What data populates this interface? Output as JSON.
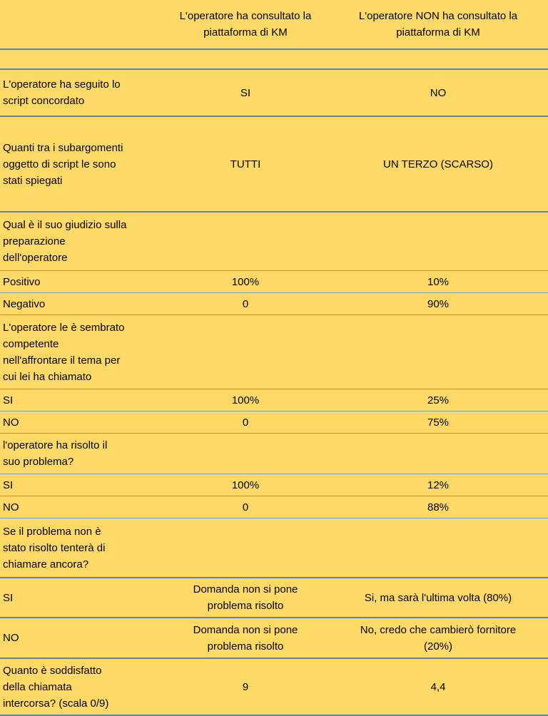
{
  "header": {
    "col1": "L'operatore ha consultato la\npiattaforma di KM",
    "col2": "L'operatore NON ha consultato la\npiattaforma di KM"
  },
  "rows": [
    {
      "label": "",
      "v1": "",
      "v2": ""
    },
    {
      "label": "L'operatore ha seguito lo\nscript concordato",
      "v1": "SI",
      "v2": "NO"
    },
    {
      "label": "Quanti tra i subargomenti\noggetto di script le sono\nstati spiegati",
      "v1": "TUTTI",
      "v2": "UN TERZO (SCARSO)"
    },
    {
      "label": "Qual è il suo giudizio sulla\npreparazione\ndell'operatore",
      "v1": "",
      "v2": ""
    },
    {
      "label": "Positivo",
      "v1": "100%",
      "v2": "10%"
    },
    {
      "label": "Negativo",
      "v1": "0",
      "v2": "90%"
    },
    {
      "label": "L'operatore le è sembrato\ncompetente\nnell'affrontare il tema per\ncui lei ha chiamato",
      "v1": "",
      "v2": ""
    },
    {
      "label": "SI",
      "v1": "100%",
      "v2": "25%"
    },
    {
      "label": "NO",
      "v1": "0",
      "v2": "75%"
    },
    {
      "label": "l'operatore ha risolto il\nsuo problema?",
      "v1": "",
      "v2": ""
    },
    {
      "label": "SI",
      "v1": "100%",
      "v2": "12%"
    },
    {
      "label": "NO",
      "v1": "0",
      "v2": "88%"
    },
    {
      "label": "Se il problema non è\nstato risolto tenterà di\nchiamare ancora?",
      "v1": "",
      "v2": ""
    },
    {
      "label": "SI",
      "v1": "Domanda non si pone\nproblema risolto",
      "v2": "Si, ma sarà l'ultima volta (80%)"
    },
    {
      "label": "NO",
      "v1": "Domanda non si pone\nproblema risolto",
      "v2": "No, credo che cambierò fornitore\n(20%)"
    },
    {
      "label": "Quanto è soddisfatto\ndella chiamata\nintercorsa? (scala 0/9)",
      "v1": "9",
      "v2": "4,4"
    }
  ]
}
